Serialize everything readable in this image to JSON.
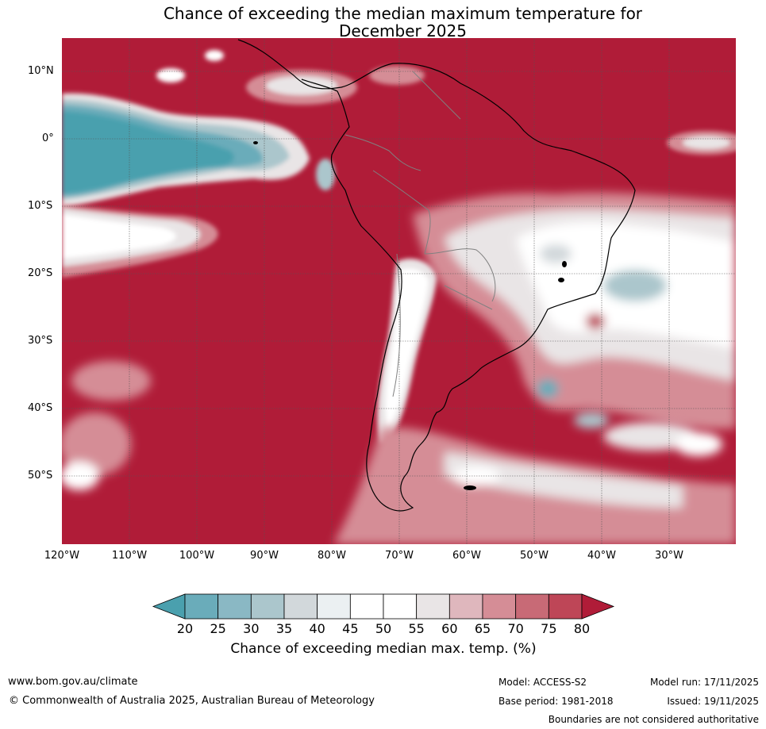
{
  "title": {
    "line1": "Chance of exceeding the median maximum temperature for",
    "line2": "December 2025"
  },
  "map": {
    "latitude_labels": [
      "10°N",
      "0°",
      "10°S",
      "20°S",
      "30°S",
      "40°S",
      "50°S"
    ],
    "longitude_labels": [
      "120°W",
      "110°W",
      "100°W",
      "90°W",
      "80°W",
      "70°W",
      "60°W",
      "50°W",
      "40°W",
      "30°W"
    ],
    "background_color": "#b01c38",
    "colors": {
      "land_outline": "#000000",
      "borders": "#808080",
      "gridlines": "#555555"
    }
  },
  "colorbar": {
    "ticks": [
      "20",
      "25",
      "30",
      "35",
      "40",
      "45",
      "50",
      "55",
      "60",
      "65",
      "70",
      "75",
      "80"
    ],
    "colors": [
      "#4aa0ae",
      "#6aacba",
      "#8ab8c4",
      "#abc6cc",
      "#d2d8db",
      "#ebf0f2",
      "#ffffff",
      "#ffffff",
      "#e9e5e6",
      "#dfb7bd",
      "#d58d96",
      "#c86a76",
      "#be4657",
      "#b01c38"
    ],
    "label": "Chance of exceeding median max. temp. (%)"
  },
  "footer": {
    "website": "www.bom.gov.au/climate",
    "copyright": "© Commonwealth of Australia 2025, Australian Bureau of Meteorology",
    "model": "Model: ACCESS-S2",
    "base_period": "Base period: 1981-2018",
    "model_run": "Model run: 17/11/2025",
    "issued": "Issued: 19/11/2025",
    "disclaimer": "Boundaries are not considered authoritative"
  }
}
